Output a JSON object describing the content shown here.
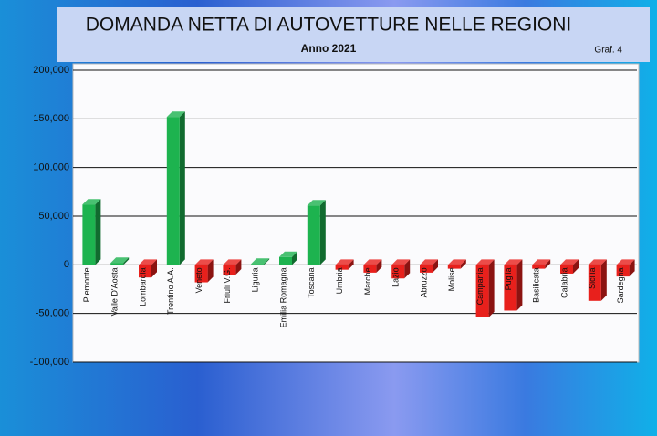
{
  "chart_data": {
    "type": "bar",
    "title": "DOMANDA NETTA  DI AUTOVETTURE  NELLE REGIONI",
    "subtitle": "Anno 2021",
    "note": "Graf. 4",
    "categories": [
      "Piemonte",
      "Valle D'Aosta",
      "Lombardia",
      "Trentino A.A.",
      "Veneto",
      "Friuli V.G.",
      "Liguria",
      "Emilia Romagna",
      "Toscana",
      "Umbria",
      "Marche",
      "Lazio",
      "Abruzzo",
      "Molise",
      "Campania",
      "Puglia",
      "Basilicata",
      "Calabria",
      "Sicilia",
      "Sardegna"
    ],
    "values": [
      62000,
      2000,
      -13000,
      152000,
      -18000,
      -10000,
      1000,
      8000,
      61000,
      -5000,
      -8000,
      -14000,
      -8000,
      -4000,
      -54000,
      -47000,
      -4000,
      -9000,
      -37000,
      -12000
    ],
    "positive_color": "#1db34f",
    "negative_color": "#e8201c",
    "ylim": [
      -100000,
      200000
    ],
    "yticks": [
      {
        "value": -100000,
        "label": "-100,000"
      },
      {
        "value": -50000,
        "label": "-50,000"
      },
      0,
      {
        "value": 50000,
        "label": "50,000"
      },
      {
        "value": 100000,
        "label": "100,000"
      },
      {
        "value": 150000,
        "label": "150,000"
      },
      {
        "value": 200000,
        "label": "200,000"
      }
    ],
    "grid": true
  }
}
